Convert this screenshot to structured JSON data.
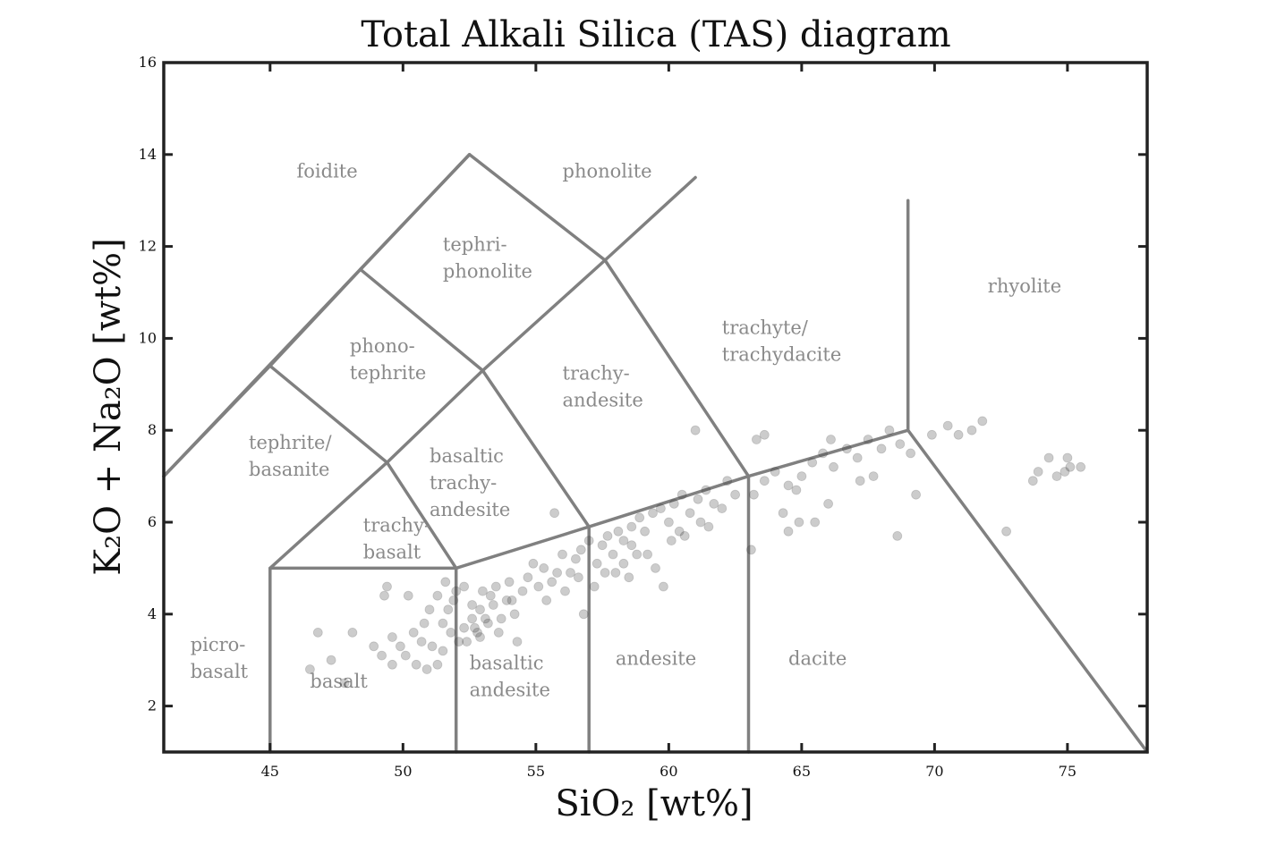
{
  "chart_data": {
    "type": "scatter",
    "title": "Total Alkali Silica (TAS) diagram",
    "xlabel": "SiO₂ [wt%]",
    "ylabel": "K₂O + Na₂O [wt%]",
    "xlim": [
      41,
      78
    ],
    "ylim": [
      1,
      16
    ],
    "xticks": [
      45,
      50,
      55,
      60,
      65,
      70,
      75
    ],
    "yticks": [
      2,
      4,
      6,
      8,
      10,
      12,
      14,
      16
    ],
    "grid": false,
    "marker_color": "#333333",
    "boundary_color": "#808080",
    "label_color": "#8a8a8a",
    "boundaries": [
      [
        [
          41,
          7
        ],
        [
          52.5,
          14
        ],
        [
          57.6,
          11.7
        ],
        [
          61,
          13.5
        ]
      ],
      [
        [
          48.4,
          11.5
        ],
        [
          53,
          9.3
        ],
        [
          57,
          5.9
        ],
        [
          57,
          1
        ]
      ],
      [
        [
          52.5,
          14
        ],
        [
          48.4,
          11.5
        ],
        [
          45,
          9.4
        ],
        [
          41,
          7
        ]
      ],
      [
        [
          48.4,
          11.5
        ],
        [
          52.5,
          14
        ]
      ],
      [
        [
          57.6,
          11.7
        ],
        [
          53,
          9.3
        ],
        [
          49.4,
          7.3
        ],
        [
          45,
          5
        ],
        [
          45,
          1
        ]
      ],
      [
        [
          57.6,
          11.7
        ],
        [
          63,
          7
        ],
        [
          63,
          1
        ]
      ],
      [
        [
          45,
          9.4
        ],
        [
          49.4,
          7.3
        ],
        [
          52,
          5
        ],
        [
          52,
          1
        ]
      ],
      [
        [
          45,
          5
        ],
        [
          52,
          5
        ],
        [
          57,
          5.9
        ],
        [
          63,
          7
        ],
        [
          69,
          8
        ],
        [
          78,
          1
        ]
      ],
      [
        [
          69,
          8
        ],
        [
          69,
          13
        ]
      ]
    ],
    "region_labels": [
      {
        "lines": [
          "foidite"
        ],
        "x": 46,
        "y": 13.5
      },
      {
        "lines": [
          "phonolite"
        ],
        "x": 56,
        "y": 13.5
      },
      {
        "lines": [
          "tephri-",
          "phonolite"
        ],
        "x": 51.5,
        "y": 11.9
      },
      {
        "lines": [
          "phono-",
          "tephrite"
        ],
        "x": 48,
        "y": 9.7
      },
      {
        "lines": [
          "tephrite/",
          "basanite"
        ],
        "x": 44.2,
        "y": 7.6
      },
      {
        "lines": [
          "trachy-",
          "basalt"
        ],
        "x": 48.5,
        "y": 5.8
      },
      {
        "lines": [
          "basaltic",
          "trachy-",
          "andesite"
        ],
        "x": 51,
        "y": 7.3
      },
      {
        "lines": [
          "trachy-",
          "andesite"
        ],
        "x": 56,
        "y": 9.1
      },
      {
        "lines": [
          "trachyte/",
          "trachydacite"
        ],
        "x": 62,
        "y": 10.1
      },
      {
        "lines": [
          "rhyolite"
        ],
        "x": 72,
        "y": 11
      },
      {
        "lines": [
          "picro-",
          "basalt"
        ],
        "x": 42,
        "y": 3.2
      },
      {
        "lines": [
          "basalt"
        ],
        "x": 46.5,
        "y": 2.4
      },
      {
        "lines": [
          "basaltic",
          "andesite"
        ],
        "x": 52.5,
        "y": 2.8
      },
      {
        "lines": [
          "andesite"
        ],
        "x": 58,
        "y": 2.9
      },
      {
        "lines": [
          "dacite"
        ],
        "x": 64.5,
        "y": 2.9
      }
    ],
    "points": [
      [
        46.5,
        2.8
      ],
      [
        46.8,
        3.6
      ],
      [
        47.3,
        3.0
      ],
      [
        47.8,
        2.5
      ],
      [
        48.1,
        3.6
      ],
      [
        48.9,
        3.3
      ],
      [
        49.2,
        3.1
      ],
      [
        49.6,
        2.9
      ],
      [
        49.3,
        4.4
      ],
      [
        49.4,
        4.6
      ],
      [
        49.6,
        3.5
      ],
      [
        49.9,
        3.3
      ],
      [
        50.1,
        3.1
      ],
      [
        50.2,
        4.4
      ],
      [
        50.4,
        3.6
      ],
      [
        50.5,
        2.9
      ],
      [
        50.7,
        3.4
      ],
      [
        50.9,
        2.8
      ],
      [
        51.1,
        3.3
      ],
      [
        51.3,
        2.9
      ],
      [
        50.8,
        3.8
      ],
      [
        51.0,
        4.1
      ],
      [
        51.3,
        4.4
      ],
      [
        51.5,
        3.8
      ],
      [
        51.7,
        4.1
      ],
      [
        51.9,
        4.3
      ],
      [
        51.6,
        4.7
      ],
      [
        52.0,
        4.5
      ],
      [
        52.3,
        4.6
      ],
      [
        51.5,
        3.2
      ],
      [
        51.8,
        3.6
      ],
      [
        52.1,
        3.4
      ],
      [
        52.3,
        3.7
      ],
      [
        52.4,
        3.4
      ],
      [
        52.6,
        3.9
      ],
      [
        52.8,
        3.6
      ],
      [
        52.9,
        4.1
      ],
      [
        53.0,
        4.5
      ],
      [
        53.2,
        3.8
      ],
      [
        53.4,
        4.2
      ],
      [
        53.5,
        4.6
      ],
      [
        53.6,
        3.6
      ],
      [
        53.9,
        4.3
      ],
      [
        54.0,
        4.7
      ],
      [
        54.2,
        4.0
      ],
      [
        54.5,
        4.5
      ],
      [
        54.7,
        4.8
      ],
      [
        54.9,
        5.1
      ],
      [
        55.1,
        4.6
      ],
      [
        55.3,
        5.0
      ],
      [
        55.6,
        4.7
      ],
      [
        55.8,
        4.9
      ],
      [
        56.0,
        5.3
      ],
      [
        56.3,
        4.9
      ],
      [
        56.5,
        5.2
      ],
      [
        56.7,
        5.4
      ],
      [
        57.0,
        5.6
      ],
      [
        57.3,
        5.1
      ],
      [
        57.5,
        5.5
      ],
      [
        57.7,
        5.7
      ],
      [
        57.9,
        5.3
      ],
      [
        58.1,
        5.8
      ],
      [
        58.3,
        5.6
      ],
      [
        58.6,
        5.9
      ],
      [
        58.9,
        6.1
      ],
      [
        59.1,
        5.8
      ],
      [
        59.4,
        6.2
      ],
      [
        59.7,
        6.3
      ],
      [
        60.0,
        6.0
      ],
      [
        60.2,
        6.4
      ],
      [
        60.5,
        6.6
      ],
      [
        60.8,
        6.2
      ],
      [
        61.1,
        6.5
      ],
      [
        61.4,
        6.7
      ],
      [
        61.7,
        6.4
      ],
      [
        58.0,
        4.9
      ],
      [
        58.3,
        5.1
      ],
      [
        58.5,
        4.8
      ],
      [
        58.8,
        5.3
      ],
      [
        59.5,
        5.0
      ],
      [
        60.1,
        5.6
      ],
      [
        60.6,
        5.7
      ],
      [
        61.2,
        6.0
      ],
      [
        62.0,
        6.3
      ],
      [
        62.5,
        6.6
      ],
      [
        63.2,
        6.6
      ],
      [
        63.6,
        6.9
      ],
      [
        64.0,
        7.1
      ],
      [
        64.5,
        6.8
      ],
      [
        65.0,
        7.0
      ],
      [
        65.4,
        7.3
      ],
      [
        65.8,
        7.5
      ],
      [
        66.2,
        7.2
      ],
      [
        66.7,
        7.6
      ],
      [
        67.1,
        7.4
      ],
      [
        67.5,
        7.8
      ],
      [
        68.0,
        7.6
      ],
      [
        68.3,
        8.0
      ],
      [
        68.7,
        7.7
      ],
      [
        69.1,
        7.5
      ],
      [
        64.3,
        6.2
      ],
      [
        64.9,
        6.0
      ],
      [
        65.5,
        6.0
      ],
      [
        66.0,
        6.4
      ],
      [
        64.5,
        5.8
      ],
      [
        67.2,
        6.9
      ],
      [
        67.7,
        7.0
      ],
      [
        69.3,
        6.6
      ],
      [
        68.6,
        5.7
      ],
      [
        61.0,
        8.0
      ],
      [
        63.3,
        7.8
      ],
      [
        63.6,
        7.9
      ],
      [
        63.1,
        5.4
      ],
      [
        59.8,
        4.6
      ],
      [
        55.7,
        6.2
      ],
      [
        69.9,
        7.9
      ],
      [
        70.5,
        8.1
      ],
      [
        70.9,
        7.9
      ],
      [
        71.4,
        8.0
      ],
      [
        71.8,
        8.2
      ],
      [
        72.7,
        5.8
      ],
      [
        73.7,
        6.9
      ],
      [
        73.9,
        7.1
      ],
      [
        74.3,
        7.4
      ],
      [
        74.6,
        7.0
      ],
      [
        74.9,
        7.1
      ],
      [
        75.0,
        7.4
      ],
      [
        75.1,
        7.2
      ],
      [
        75.5,
        7.2
      ],
      [
        66.1,
        7.8
      ],
      [
        52.6,
        4.2
      ],
      [
        52.7,
        3.7
      ],
      [
        52.9,
        3.5
      ],
      [
        53.1,
        3.9
      ],
      [
        53.3,
        4.4
      ],
      [
        53.7,
        3.9
      ],
      [
        54.3,
        3.4
      ],
      [
        54.1,
        4.3
      ],
      [
        55.4,
        4.3
      ],
      [
        56.1,
        4.5
      ],
      [
        56.8,
        4.0
      ],
      [
        57.2,
        4.6
      ],
      [
        56.6,
        4.8
      ],
      [
        57.6,
        4.9
      ],
      [
        58.6,
        5.5
      ],
      [
        59.2,
        5.3
      ],
      [
        60.4,
        5.8
      ],
      [
        61.5,
        5.9
      ],
      [
        62.2,
        6.9
      ],
      [
        64.8,
        6.7
      ]
    ]
  }
}
